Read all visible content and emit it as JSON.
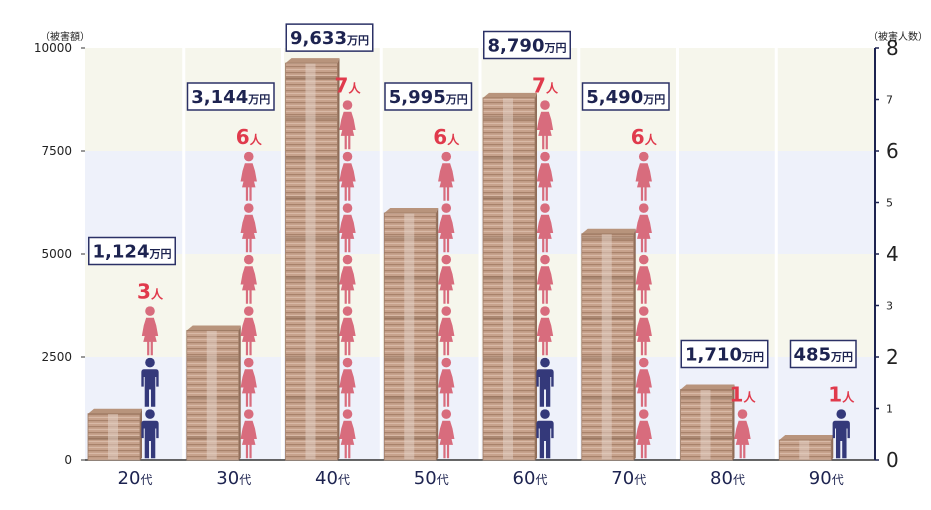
{
  "chart_data": {
    "type": "bar",
    "categories": [
      "20",
      "30",
      "40",
      "50",
      "60",
      "70",
      "80",
      "90"
    ],
    "category_suffix": "代",
    "series": [
      {
        "values": [
          1124,
          3144,
          9633,
          5995,
          8790,
          5490,
          1710,
          485
        ]
      },
      {
        "values": [
          3,
          6,
          7,
          6,
          7,
          6,
          1,
          1
        ]
      }
    ],
    "female_counts": [
      1,
      6,
      7,
      6,
      5,
      6,
      1,
      0
    ],
    "male_counts": [
      2,
      0,
      0,
      0,
      2,
      0,
      0,
      1
    ],
    "amount_labels": [
      "1,124",
      "3,144",
      "9,633",
      "5,995",
      "8,790",
      "5,490",
      "1,710",
      "485"
    ],
    "amount_unit": "万円",
    "count_unit": "人",
    "y_left_label": "（被害額）",
    "y_right_label": "（被害人数）",
    "y_left_ticks": [
      "0",
      "2500",
      "5000",
      "7500",
      "10000"
    ],
    "y_right_ticks": [
      "0",
      "1",
      "2",
      "3",
      "4",
      "5",
      "6",
      "7",
      "8"
    ],
    "ylim_left": [
      0,
      10000
    ],
    "ylim_right": [
      0,
      8
    ],
    "colors": {
      "female": "#d86c7d",
      "male": "#34397a",
      "count_text": "#e03a4c",
      "label_border": "#2b3166",
      "bill_edge": "#9e7b64",
      "bill_face": "#c7a28c",
      "band_blue": "#eef1fa",
      "band_beige": "#f6f6ec"
    }
  }
}
